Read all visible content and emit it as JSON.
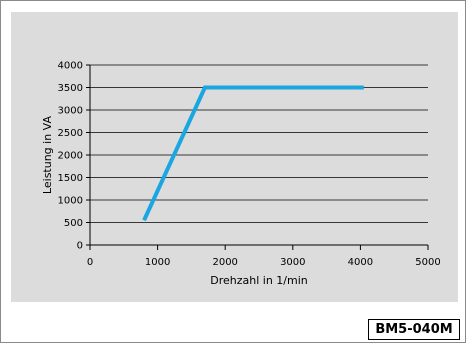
{
  "chart_data": {
    "type": "line",
    "xlabel": "Drehzahl in 1/min",
    "ylabel": "Leistung in VA",
    "xlim": [
      0,
      5000
    ],
    "ylim": [
      0,
      4000
    ],
    "x_ticks": [
      0,
      1000,
      2000,
      3000,
      4000,
      5000
    ],
    "y_ticks": [
      0,
      500,
      1000,
      1500,
      2000,
      2500,
      3000,
      3500,
      4000
    ],
    "grid": "horizontal",
    "series": [
      {
        "x": [
          800,
          1700,
          4050
        ],
        "y": [
          550,
          3500,
          3500
        ],
        "color": "#1aa6e0"
      }
    ]
  },
  "figure_code": "BM5-040M",
  "colors": {
    "panel": "#dcdcdc",
    "line": "#1aa6e0"
  }
}
